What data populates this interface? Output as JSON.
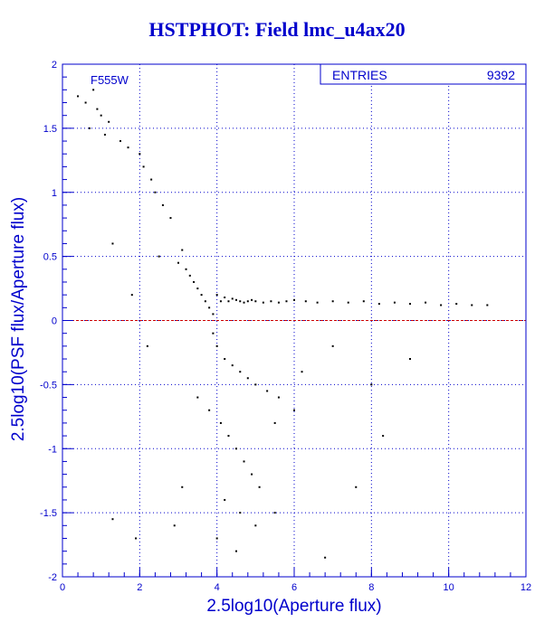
{
  "chart_data": {
    "type": "scatter",
    "title": "HSTPHOT: Field lmc_u4ax20",
    "xlabel": "2.5log10(Aperture flux)",
    "ylabel": "2.5log10(PSF flux/Aperture flux)",
    "xlim": [
      0,
      12
    ],
    "ylim": [
      -2,
      2
    ],
    "xticks": [
      "0",
      "2",
      "4",
      "6",
      "8",
      "10",
      "12"
    ],
    "yticks": [
      "2",
      "1.5",
      "1",
      "0.5",
      "0",
      "-0.5",
      "-1",
      "-1.5",
      "-2"
    ],
    "grid": true,
    "annotation": "F555W",
    "stats": {
      "label": "ENTRIES",
      "value": "9392"
    },
    "reference_line": {
      "y": 0,
      "color": "#cc0000"
    },
    "colors": {
      "axes": "#0000cc",
      "points": "#000000",
      "reference": "#cc0000"
    },
    "series": [
      {
        "entries": 9392,
        "x": [
          0.4,
          0.6,
          0.8,
          0.9,
          1.0,
          1.2,
          1.5,
          1.7,
          2.0,
          2.1,
          2.3,
          2.4,
          2.6,
          2.8,
          1.1,
          1.3,
          1.8,
          0.7,
          2.2,
          2.5,
          3.0,
          3.1,
          3.2,
          3.3,
          3.4,
          3.5,
          3.6,
          3.7,
          3.8,
          3.9,
          4.0,
          4.1,
          4.2,
          4.3,
          4.4,
          4.5,
          4.6,
          4.7,
          4.8,
          4.9,
          5.0,
          5.2,
          5.4,
          5.6,
          5.8,
          6.0,
          6.3,
          6.6,
          7.0,
          7.4,
          7.8,
          8.2,
          8.6,
          9.0,
          9.4,
          9.8,
          10.2,
          10.6,
          11.0,
          3.9,
          4.0,
          4.2,
          4.4,
          4.6,
          4.8,
          5.0,
          5.3,
          5.6,
          6.0,
          4.1,
          4.3,
          4.5,
          4.7,
          4.9,
          5.1,
          3.5,
          3.8,
          4.2,
          4.6,
          5.0,
          5.5,
          6.2,
          7.0,
          8.0,
          9.0,
          1.3,
          1.9,
          2.9,
          3.1,
          4.0,
          4.5,
          5.5,
          6.8,
          7.6,
          8.3
        ],
        "y": [
          1.75,
          1.7,
          1.8,
          1.65,
          1.6,
          1.55,
          1.4,
          1.35,
          1.3,
          1.2,
          1.1,
          1.0,
          0.9,
          0.8,
          1.45,
          0.6,
          0.2,
          1.5,
          -0.2,
          0.5,
          0.45,
          0.55,
          0.4,
          0.35,
          0.3,
          0.25,
          0.2,
          0.15,
          0.1,
          0.05,
          0.2,
          0.15,
          0.18,
          0.15,
          0.17,
          0.16,
          0.15,
          0.14,
          0.15,
          0.16,
          0.15,
          0.14,
          0.15,
          0.14,
          0.15,
          0.16,
          0.15,
          0.14,
          0.15,
          0.14,
          0.15,
          0.13,
          0.14,
          0.13,
          0.14,
          0.12,
          0.13,
          0.12,
          0.12,
          -0.1,
          -0.2,
          -0.3,
          -0.35,
          -0.4,
          -0.45,
          -0.5,
          -0.55,
          -0.6,
          -0.7,
          -0.8,
          -0.9,
          -1.0,
          -1.1,
          -1.2,
          -1.3,
          -0.6,
          -0.7,
          -1.4,
          -1.5,
          -1.6,
          -0.8,
          -0.4,
          -0.2,
          -0.5,
          -0.3,
          -1.55,
          -1.7,
          -1.6,
          -1.3,
          -1.7,
          -1.8,
          -1.5,
          -1.85,
          -1.3,
          -0.9
        ]
      }
    ]
  }
}
